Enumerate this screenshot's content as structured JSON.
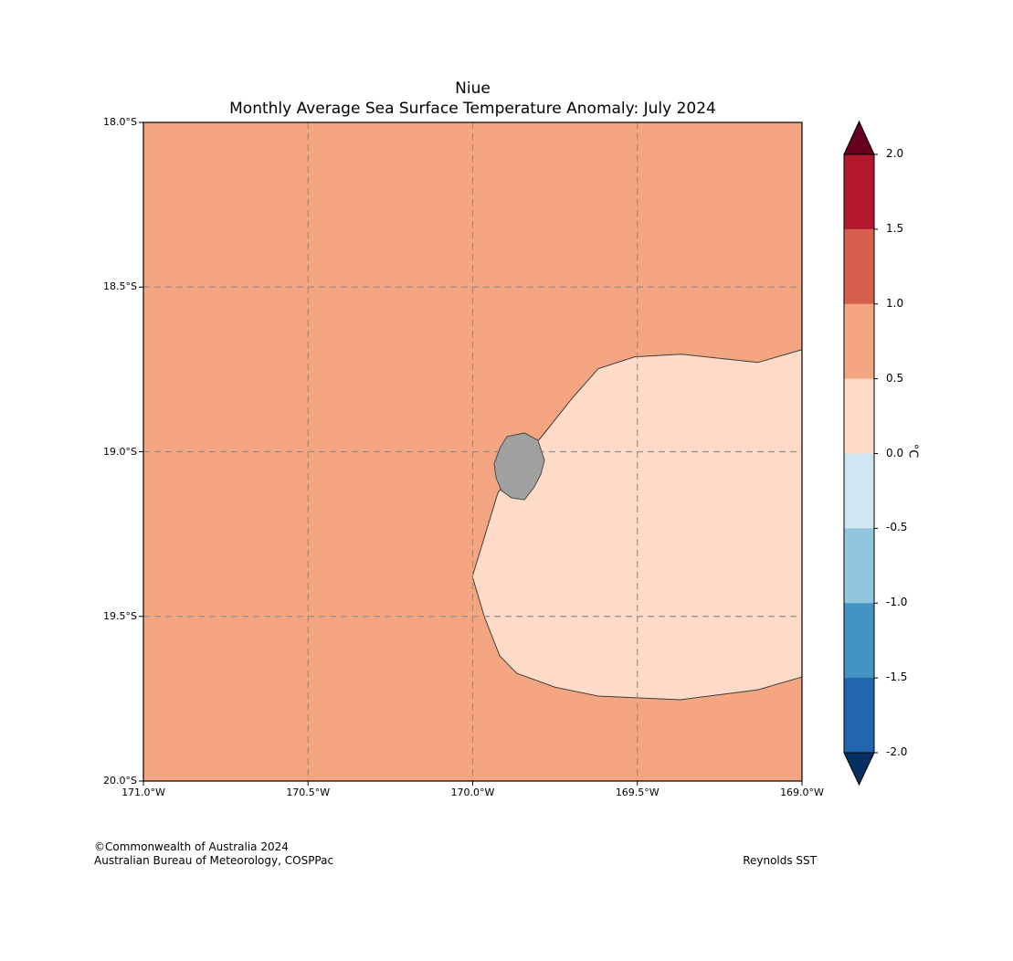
{
  "footer": {
    "copyright_line1": "©Commonwealth of Australia 2024",
    "copyright_line2": "Australian Bureau of Meteorology, COSPPac",
    "source": "Reynolds SST"
  },
  "chart_data": {
    "type": "heatmap",
    "subtype": "filled_contour_map",
    "title": "Niue",
    "subtitle": "Monthly Average Sea Surface Temperature Anomaly: July 2024",
    "grid": "dashed",
    "x_axis": {
      "tick_labels": [
        "171.0°W",
        "170.5°W",
        "170.0°W",
        "169.5°W",
        "169.0°W"
      ],
      "values_deg_west": [
        171.0,
        170.5,
        170.0,
        169.5,
        169.0
      ],
      "range_deg_west": [
        171.0,
        169.0
      ]
    },
    "y_axis": {
      "tick_labels": [
        "18.0°S",
        "18.5°S",
        "19.0°S",
        "19.5°S",
        "20.0°S"
      ],
      "values_deg_south": [
        18.0,
        18.5,
        19.0,
        19.5,
        20.0
      ],
      "range_deg_south": [
        18.0,
        20.0
      ]
    },
    "gridlines": {
      "x_deg_west": [
        170.5,
        170.0,
        169.5
      ],
      "y_deg_south": [
        18.5,
        19.0,
        19.5
      ],
      "color": "#909090",
      "style": "dashed"
    },
    "colorbar": {
      "unit_label": "°C",
      "boundary_labels": [
        "2.0",
        "1.5",
        "1.0",
        "0.5",
        "0.0",
        "-0.5",
        "-1.0",
        "-1.5",
        "-2.0"
      ],
      "boundary_values": [
        2.0,
        1.5,
        1.0,
        0.5,
        0.0,
        -0.5,
        -1.0,
        -1.5,
        -2.0
      ],
      "band_colors_top_to_bottom": [
        "#b2182b",
        "#d6604d",
        "#f4a582",
        "#fddbc7",
        "#d1e5f0",
        "#92c5de",
        "#4393c3",
        "#2166ac"
      ],
      "over_arrow_color": "#67001f",
      "under_arrow_color": "#053061"
    },
    "regions": [
      {
        "name": "anomaly_0.5_to_1.0",
        "value_range_c": [
          0.5,
          1.0
        ],
        "color": "#f4a582",
        "coverage": "background"
      },
      {
        "name": "anomaly_0.0_to_0.5",
        "value_range_c": [
          0.0,
          0.5
        ],
        "color": "#fddbc7",
        "polygon_lonW_latS": [
          [
            169.0,
            18.69
          ],
          [
            169.134,
            18.729
          ],
          [
            169.366,
            18.704
          ],
          [
            169.508,
            18.712
          ],
          [
            169.619,
            18.748
          ],
          [
            169.7,
            18.84
          ],
          [
            169.793,
            18.957
          ],
          [
            169.86,
            19.03
          ],
          [
            169.924,
            19.126
          ],
          [
            170.001,
            19.379
          ],
          [
            169.965,
            19.5
          ],
          [
            169.918,
            19.62
          ],
          [
            169.866,
            19.673
          ],
          [
            169.75,
            19.715
          ],
          [
            169.619,
            19.742
          ],
          [
            169.369,
            19.753
          ],
          [
            169.134,
            19.723
          ],
          [
            169.0,
            19.684
          ]
        ]
      }
    ],
    "island": {
      "name": "Niue",
      "fill_color": "#a0a0a0",
      "outline_color": "#4d4d4d",
      "polygon_lonW_latS": [
        [
          169.896,
          18.954
        ],
        [
          169.843,
          18.943
        ],
        [
          169.802,
          18.965
        ],
        [
          169.782,
          19.026
        ],
        [
          169.793,
          19.068
        ],
        [
          169.813,
          19.107
        ],
        [
          169.843,
          19.146
        ],
        [
          169.882,
          19.14
        ],
        [
          169.913,
          19.118
        ],
        [
          169.929,
          19.079
        ],
        [
          169.935,
          19.037
        ],
        [
          169.918,
          18.99
        ]
      ]
    }
  }
}
